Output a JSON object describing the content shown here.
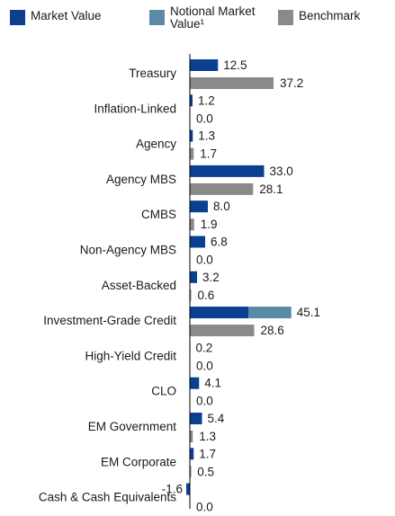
{
  "colors": {
    "market_value": "#0b3f8f",
    "notional_market_value": "#5b8aa6",
    "benchmark": "#8a8a8a",
    "axis": "#000000"
  },
  "legend": {
    "items": [
      {
        "key": "market_value",
        "label": "Market Value"
      },
      {
        "key": "notional_market_value",
        "label": "Notional Market Value¹"
      },
      {
        "key": "benchmark",
        "label": "Benchmark"
      }
    ]
  },
  "chart_data": {
    "type": "bar",
    "orientation": "horizontal",
    "title": "",
    "xlabel": "",
    "ylabel": "",
    "xlim": [
      -1.6,
      45.1
    ],
    "grid": false,
    "legend_position": "top",
    "categories": [
      "Treasury",
      "Inflation-Linked",
      "Agency",
      "Agency MBS",
      "CMBS",
      "Non-Agency MBS",
      "Asset-Backed",
      "Investment-Grade Credit",
      "High-Yield Credit",
      "CLO",
      "EM Government",
      "EM Corporate",
      "Cash & Cash Equivalents"
    ],
    "series": [
      {
        "name": "Market Value",
        "key": "market_value",
        "values": [
          12.5,
          1.2,
          1.3,
          33.0,
          8.0,
          6.8,
          3.2,
          26.0,
          0.2,
          4.1,
          5.4,
          1.7,
          -1.6
        ]
      },
      {
        "name": "Notional Market Value¹",
        "key": "notional_market_value",
        "values": [
          0,
          0,
          0,
          0,
          0,
          0,
          0,
          19.1,
          0,
          0,
          0,
          0,
          0
        ]
      },
      {
        "name": "Benchmark",
        "key": "benchmark",
        "values": [
          37.2,
          0.0,
          1.7,
          28.1,
          1.9,
          0.0,
          0.6,
          28.6,
          0.0,
          0.0,
          1.3,
          0.5,
          0.0
        ]
      }
    ],
    "data_labels": {
      "top": [
        "12.5",
        "1.2",
        "1.3",
        "33.0",
        "8.0",
        "6.8",
        "3.2",
        "45.1",
        "0.2",
        "4.1",
        "5.4",
        "1.7",
        "-1.6"
      ],
      "bottom": [
        "37.2",
        "0.0",
        "1.7",
        "28.1",
        "1.9",
        "0.0",
        "0.6",
        "28.6",
        "0.0",
        "0.0",
        "1.3",
        "0.5",
        "0.0"
      ]
    }
  }
}
